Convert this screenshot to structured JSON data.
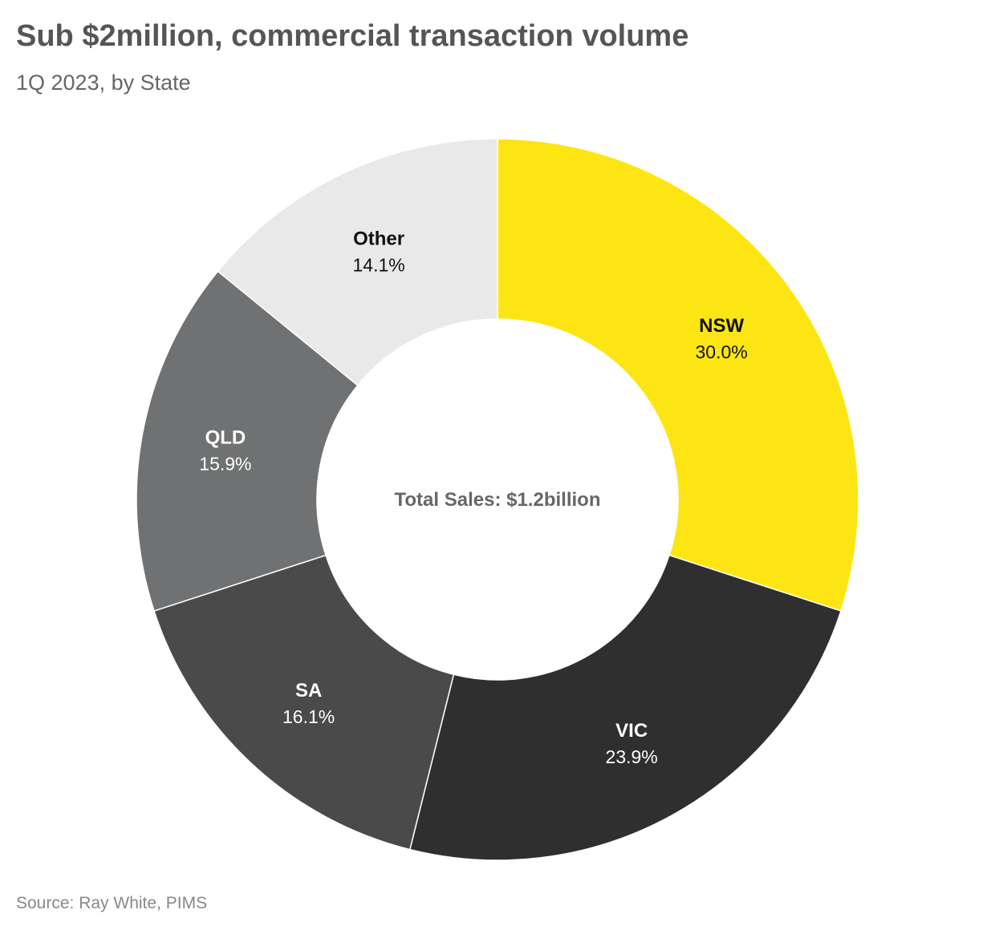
{
  "title": "Sub $2million, commercial transaction volume",
  "subtitle": "1Q 2023, by State",
  "source": "Source: Ray White, PIMS",
  "center_label": "Total Sales: $1.2billion",
  "chart_data": {
    "type": "pie",
    "variant": "donut",
    "title": "Sub $2million, commercial transaction volume",
    "subtitle": "1Q 2023, by State",
    "start": "12 o'clock",
    "direction": "clockwise",
    "categories": [
      "NSW",
      "VIC",
      "SA",
      "QLD",
      "Other"
    ],
    "values": [
      30.0,
      23.9,
      16.1,
      15.9,
      14.1
    ],
    "value_labels": [
      "30.0%",
      "23.9%",
      "16.1%",
      "15.9%",
      "14.1%"
    ],
    "colors": [
      "#fde514",
      "#2f2f2f",
      "#4a4a4a",
      "#707172",
      "#e9e9e9"
    ],
    "label_colors": [
      "#111111",
      "#ffffff",
      "#ffffff",
      "#ffffff",
      "#111111"
    ],
    "center_label": "Total Sales: $1.2billion",
    "legend": "none"
  }
}
